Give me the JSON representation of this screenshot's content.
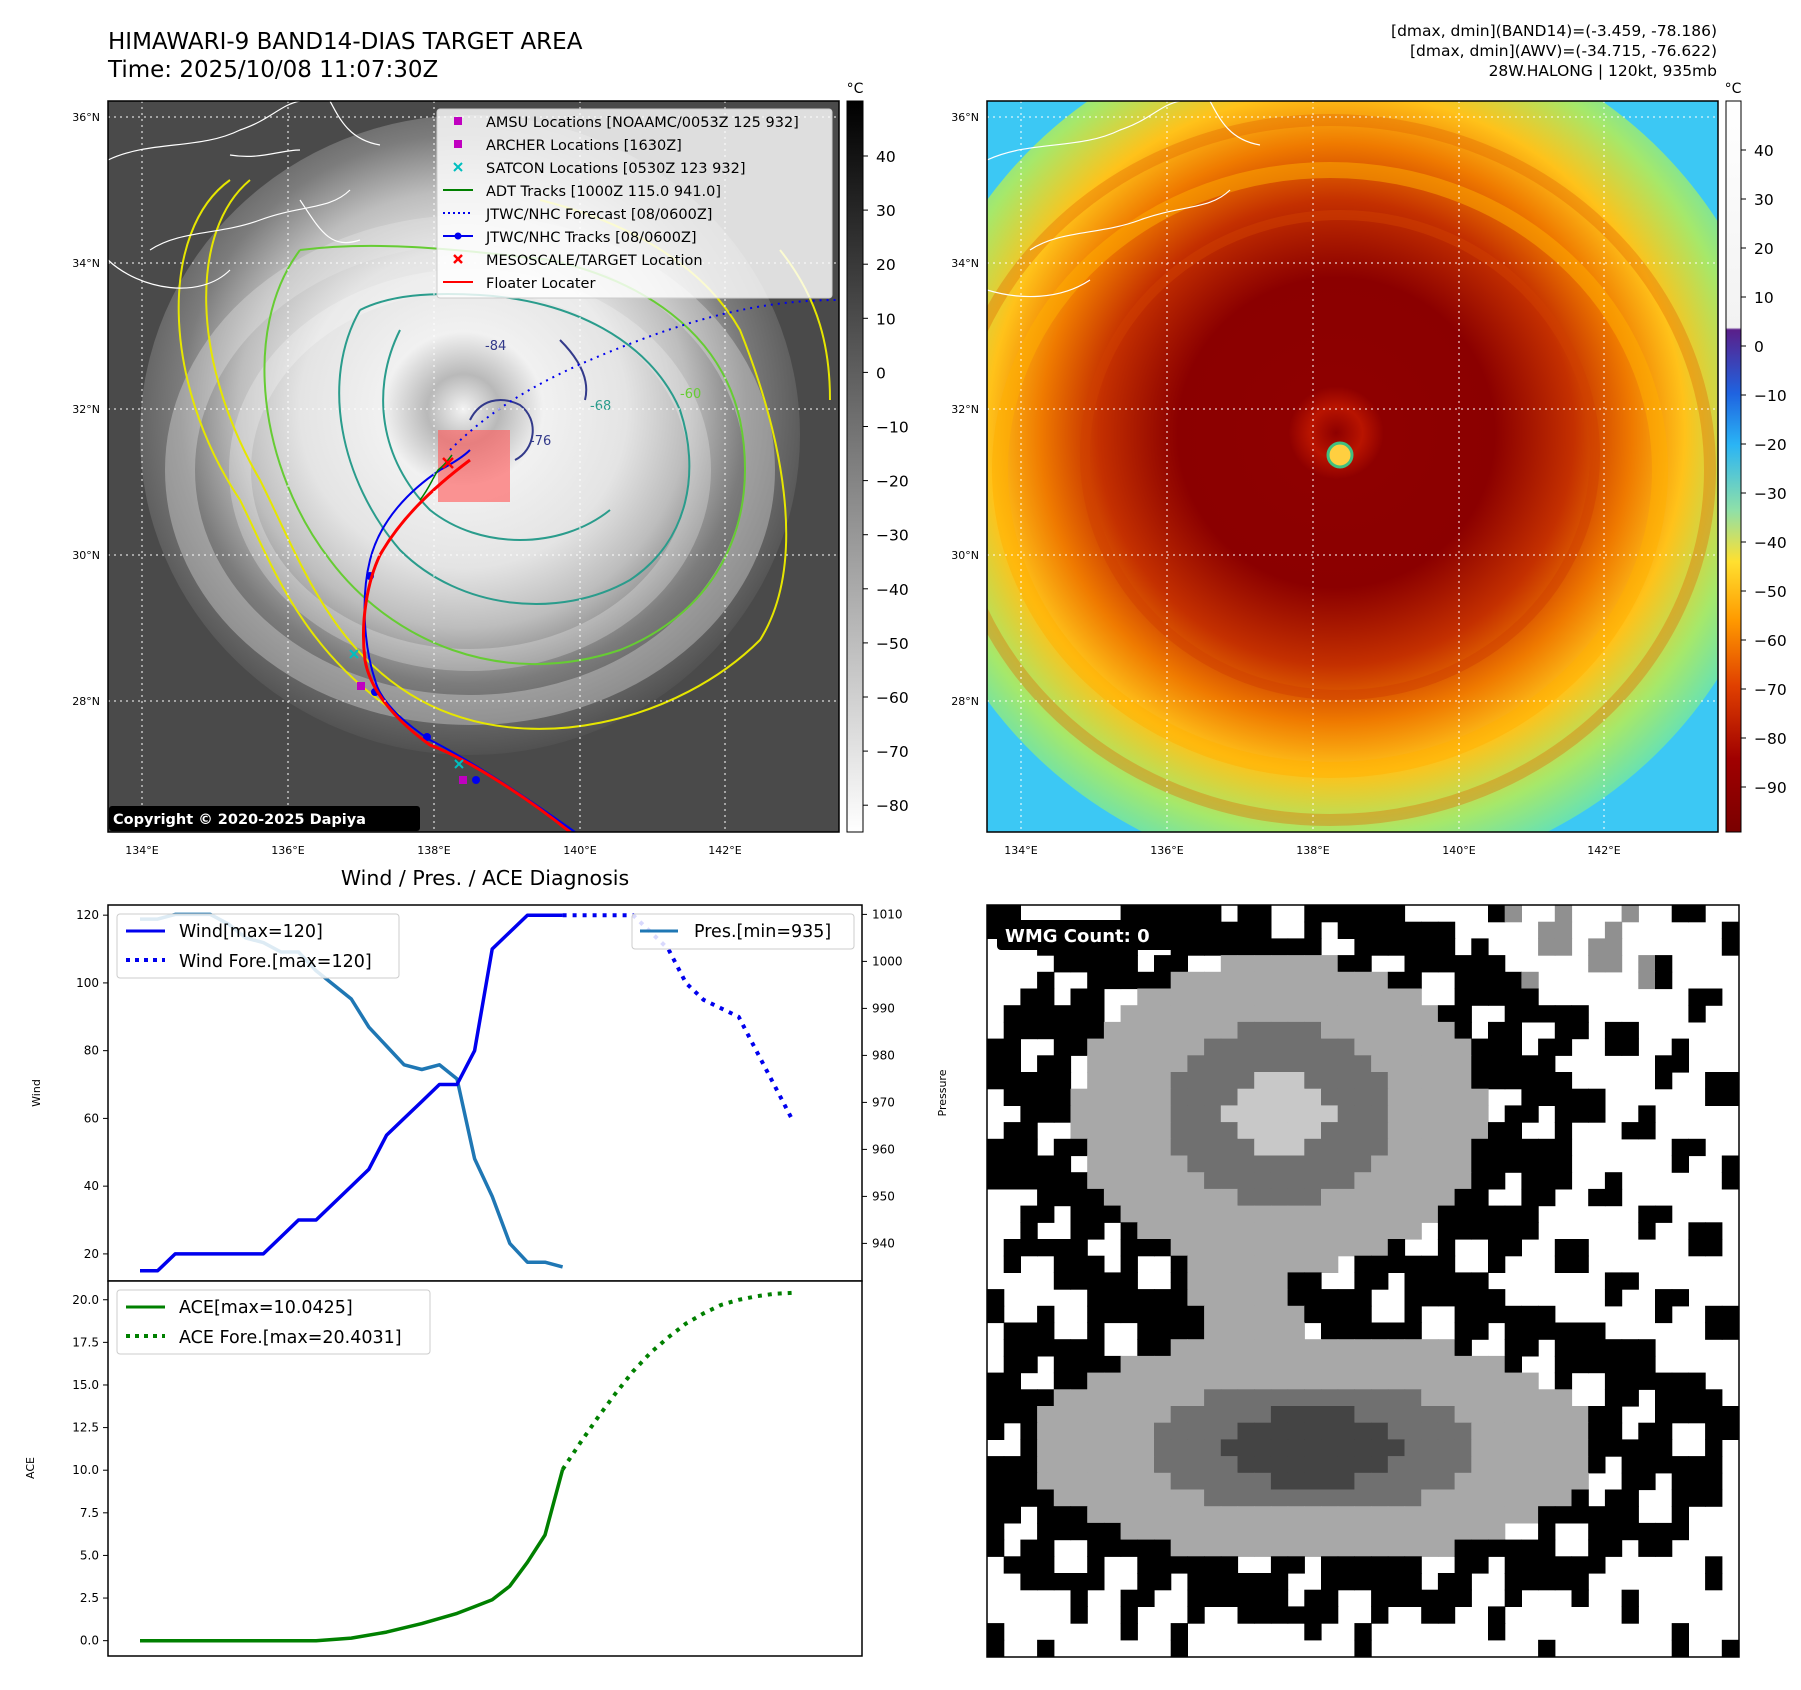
{
  "header": {
    "title_line1": "HIMAWARI-9 BAND14-DIAS TARGET AREA",
    "title_line2": "Time: 2025/10/08 11:07:30Z",
    "info_line1": "[dmax, dmin](BAND14)=(-3.459, -78.186)",
    "info_line2": "[dmax, dmin](AWV)=(-34.715, -76.622)",
    "info_line3": "28W.HALONG | 120kt, 935mb"
  },
  "map": {
    "lon_labels": [
      "134°E",
      "136°E",
      "138°E",
      "140°E",
      "142°E"
    ],
    "lat_labels": [
      "36°N",
      "34°N",
      "32°N",
      "30°N",
      "28°N"
    ],
    "copyright": "Copyright © 2020-2025 Dapiya",
    "legend": [
      {
        "label": "AMSU Locations [NOAAMC/0053Z 125 932]",
        "marker": "square",
        "color": "#c000c0"
      },
      {
        "label": "ARCHER Locations [1630Z]",
        "marker": "square",
        "color": "#c000c0"
      },
      {
        "label": "SATCON Locations [0530Z 123 932]",
        "marker": "x",
        "color": "#00bfbf"
      },
      {
        "label": "ADT Tracks [1000Z 115.0 941.0]",
        "marker": "line",
        "color": "#008000"
      },
      {
        "label": "JTWC/NHC Forecast [08/0600Z]",
        "marker": "dotted",
        "color": "#0000ff"
      },
      {
        "label": "JTWC/NHC Tracks [08/0600Z]",
        "marker": "line-dot",
        "color": "#0000ff"
      },
      {
        "label": "MESOSCALE/TARGET Location",
        "marker": "x",
        "color": "#ff0000"
      },
      {
        "label": "Floater Locater",
        "marker": "line",
        "color": "#ff0000"
      }
    ],
    "contour_labels": [
      "-84",
      "-76",
      "-68",
      "-60"
    ],
    "colorbar_unit": "°C",
    "gray_colorbar_ticks": [
      "40",
      "30",
      "20",
      "10",
      "0",
      "−10",
      "−20",
      "−30",
      "−40",
      "−50",
      "−60",
      "−70",
      "−80"
    ],
    "color_colorbar_ticks": [
      "40",
      "30",
      "20",
      "10",
      "0",
      "−10",
      "−20",
      "−30",
      "−40",
      "−50",
      "−60",
      "−70",
      "−80",
      "−90"
    ]
  },
  "chart_data": [
    {
      "type": "line",
      "title": "Wind / Pres. / ACE Diagnosis",
      "ylabel": "Wind",
      "y2label": "Pressure",
      "ylim": [
        12,
        123
      ],
      "y2lim": [
        932,
        1012
      ],
      "x_index_range": [
        0,
        41
      ],
      "yticks": [
        20,
        40,
        60,
        80,
        100,
        120
      ],
      "y2ticks": [
        940,
        950,
        960,
        970,
        980,
        990,
        1000,
        1010
      ],
      "series": [
        {
          "name": "Wind[max=120]",
          "style": "solid",
          "color": "#0000ee",
          "x": [
            0,
            1,
            2,
            3,
            4,
            5,
            6,
            7,
            8,
            9,
            10,
            11,
            12,
            13,
            14,
            15,
            16,
            17,
            18,
            19,
            20,
            21,
            22,
            23,
            24
          ],
          "values": [
            15,
            15,
            20,
            20,
            20,
            20,
            20,
            20,
            25,
            30,
            30,
            35,
            40,
            45,
            55,
            60,
            65,
            70,
            70,
            80,
            110,
            115,
            120,
            120,
            120
          ]
        },
        {
          "name": "Wind Fore.[max=120]",
          "style": "dotted",
          "color": "#0000ee",
          "x": [
            24,
            26,
            28,
            29,
            30,
            31,
            32,
            34,
            35,
            36,
            37
          ],
          "values": [
            120,
            120,
            120,
            115,
            110,
            100,
            95,
            90,
            80,
            70,
            60
          ]
        },
        {
          "name": "Pres.[min=935]",
          "style": "solid",
          "color": "#1f77b4",
          "x": [
            0,
            1,
            2,
            3,
            4,
            5,
            6,
            7,
            8,
            9,
            10,
            11,
            12,
            13,
            14,
            15,
            16,
            17,
            18,
            19,
            20,
            21,
            22,
            23,
            24
          ],
          "values": [
            1009,
            1009,
            1010,
            1010,
            1010,
            1008,
            1005,
            1004,
            1002,
            1002,
            998,
            995,
            992,
            986,
            982,
            978,
            977,
            978,
            975,
            958,
            950,
            940,
            936,
            936,
            935
          ]
        }
      ]
    },
    {
      "type": "line",
      "ylabel": "ACE",
      "ylim": [
        -0.9,
        21.1
      ],
      "x_index_range": [
        0,
        41
      ],
      "yticks": [
        "0.0",
        "2.5",
        "5.0",
        "7.5",
        "10.0",
        "12.5",
        "15.0",
        "17.5",
        "20.0"
      ],
      "series": [
        {
          "name": "ACE[max=10.0425]",
          "style": "solid",
          "color": "#008000",
          "x": [
            0,
            2,
            4,
            6,
            8,
            10,
            12,
            14,
            16,
            18,
            19,
            20,
            21,
            22,
            23,
            24
          ],
          "values": [
            0,
            0,
            0,
            0,
            0,
            0,
            0.15,
            0.5,
            1.0,
            1.6,
            2.0,
            2.4,
            3.2,
            4.6,
            6.2,
            10.0425
          ]
        },
        {
          "name": "ACE Fore.[max=20.4031]",
          "style": "dotted",
          "color": "#008000",
          "x": [
            24,
            25,
            26,
            27,
            28,
            29,
            30,
            31,
            32,
            33,
            34,
            35,
            36,
            37
          ],
          "values": [
            10.0425,
            11.6,
            13.1,
            14.5,
            15.8,
            16.9,
            17.8,
            18.6,
            19.2,
            19.7,
            20.0,
            20.2,
            20.35,
            20.4031
          ]
        }
      ]
    }
  ],
  "wmg": {
    "label": "WMG Count: 0"
  }
}
